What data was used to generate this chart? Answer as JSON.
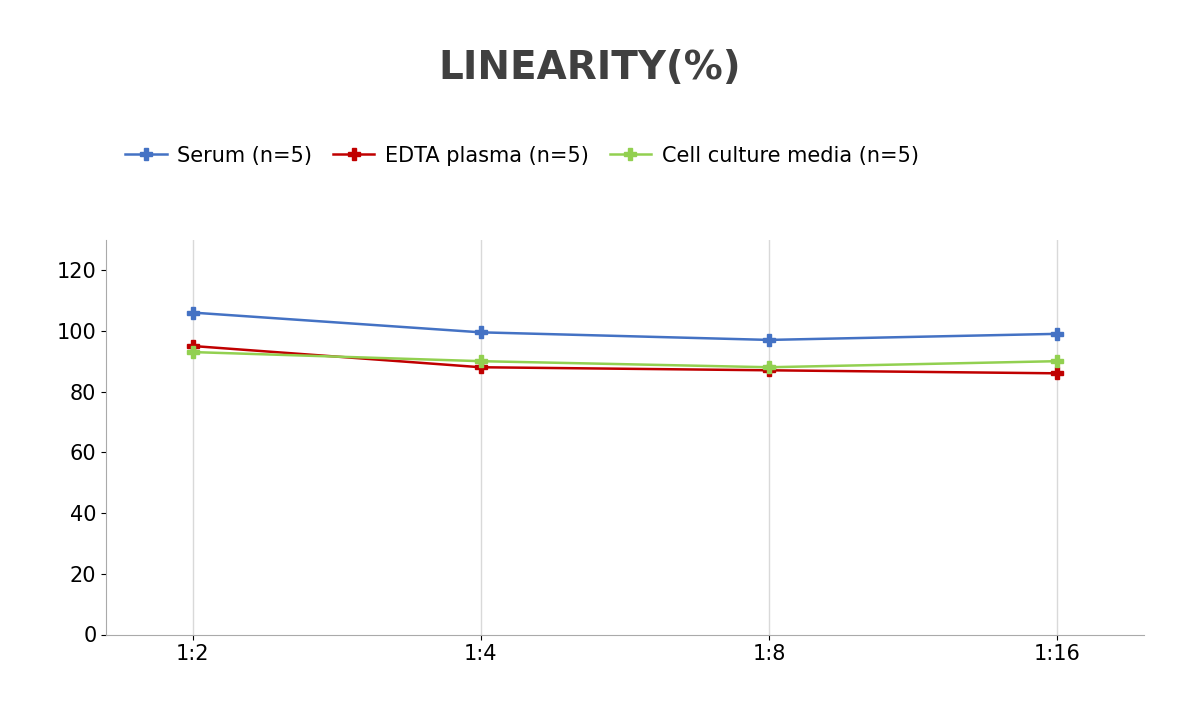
{
  "title": "LINEARITY(%)",
  "x_labels": [
    "1:2",
    "1:4",
    "1:8",
    "1:16"
  ],
  "x_positions": [
    0,
    1,
    2,
    3
  ],
  "series": [
    {
      "label": "Serum (n=5)",
      "values": [
        106,
        99.5,
        97,
        99
      ],
      "color": "#4472C4",
      "marker": "P",
      "markersize": 9,
      "linewidth": 1.8
    },
    {
      "label": "EDTA plasma (n=5)",
      "values": [
        95,
        88,
        87,
        86
      ],
      "color": "#C00000",
      "marker": "P",
      "markersize": 9,
      "linewidth": 1.8
    },
    {
      "label": "Cell culture media (n=5)",
      "values": [
        93,
        90,
        88,
        90
      ],
      "color": "#92D050",
      "marker": "P",
      "markersize": 9,
      "linewidth": 1.8
    }
  ],
  "ylim": [
    0,
    130
  ],
  "yticks": [
    0,
    20,
    40,
    60,
    80,
    100,
    120
  ],
  "title_fontsize": 28,
  "title_fontweight": "bold",
  "legend_fontsize": 15,
  "tick_fontsize": 15,
  "background_color": "#ffffff",
  "grid_color": "#d9d9d9"
}
